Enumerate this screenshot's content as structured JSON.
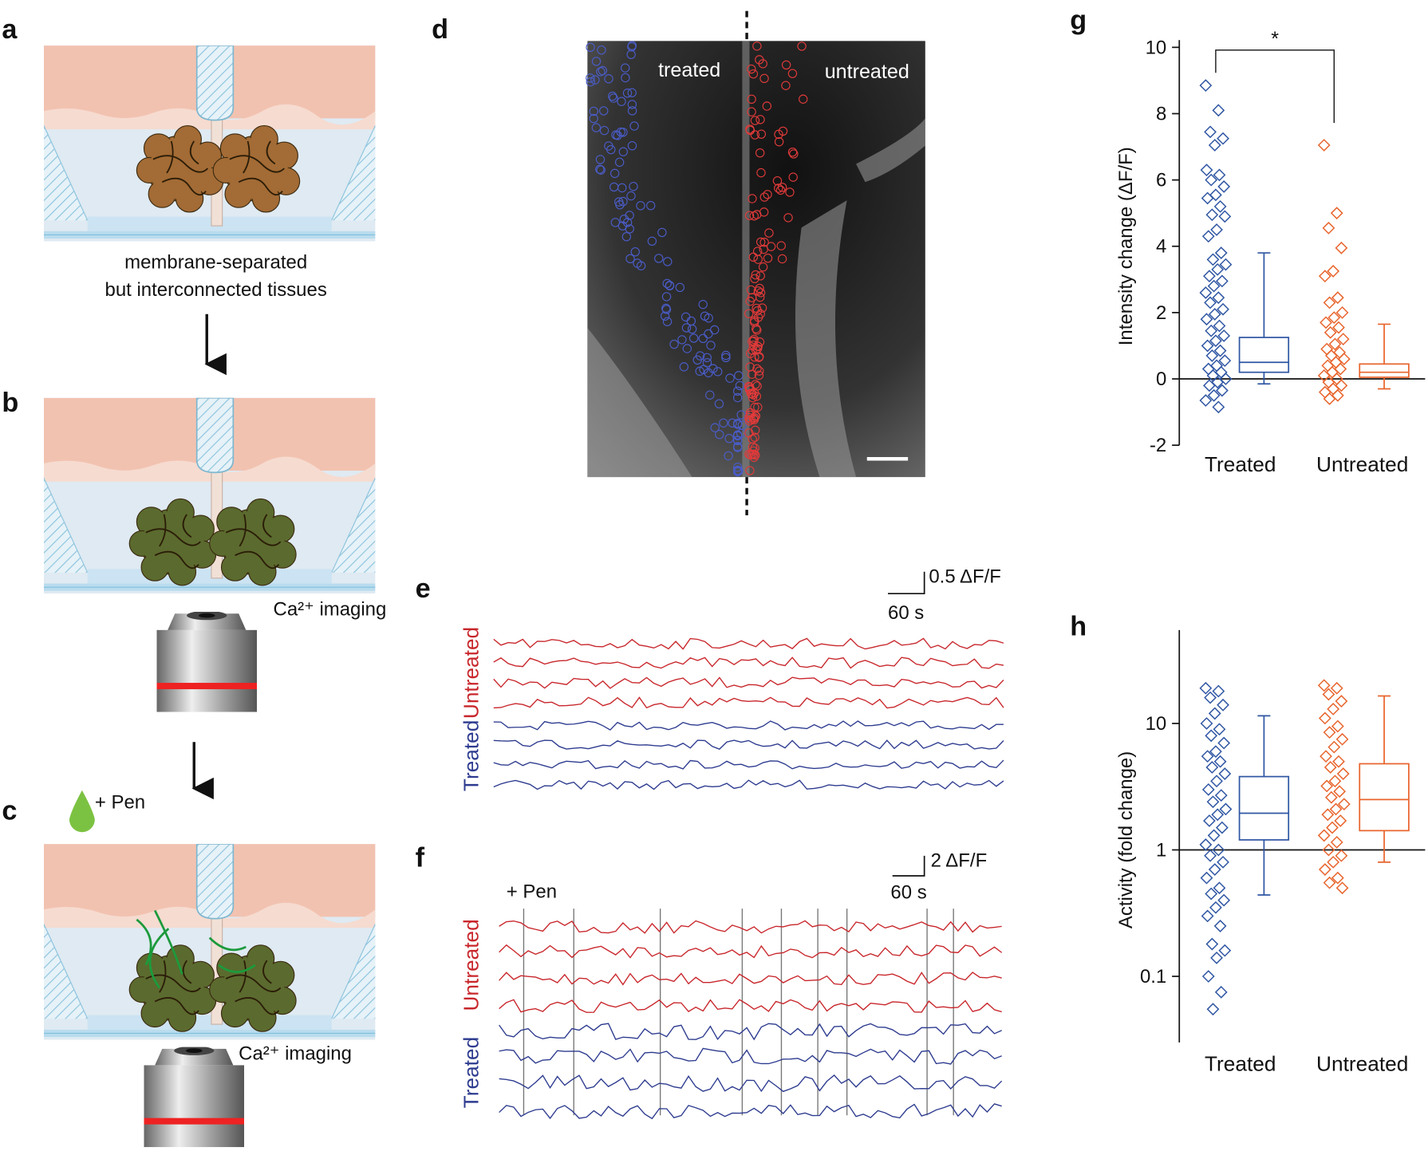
{
  "panels": {
    "a": "a",
    "b": "b",
    "c": "c",
    "d": "d",
    "e": "e",
    "f": "f",
    "g": "g",
    "h": "h"
  },
  "panel_a": {
    "caption_line1": "membrane-separated",
    "caption_line2": "but interconnected tissues"
  },
  "panel_b": {
    "imaging": "Ca²⁺ imaging"
  },
  "panel_c": {
    "drug": "+ Pen",
    "imaging": "Ca²⁺ imaging"
  },
  "panel_d": {
    "left_label": "treated",
    "right_label": "untreated"
  },
  "panel_e": {
    "scale_y": "0.5 ΔF/F",
    "scale_x": "60 s",
    "label_top": "Untreated",
    "label_bottom": "Treated"
  },
  "panel_f": {
    "drug": "+ Pen",
    "scale_y": "2 ΔF/F",
    "scale_x": "60 s",
    "label_top": "Untreated",
    "label_bottom": "Treated"
  },
  "chart_data": [
    {
      "type": "box",
      "y_label": "Intensity change (ΔF/F)",
      "annotation": "*",
      "ylim": [
        -2,
        10
      ],
      "yticks": [
        -2,
        0,
        2,
        4,
        6,
        8,
        10
      ],
      "reference_line": 0,
      "categories": [
        "Treated",
        "Untreated"
      ],
      "series": [
        {
          "color": "#2f56a3",
          "points": [
            8.85,
            8.1,
            7.45,
            7.25,
            7.05,
            6.3,
            6.15,
            6.0,
            5.8,
            5.55,
            5.45,
            5.2,
            4.95,
            4.9,
            4.5,
            4.3,
            3.8,
            3.6,
            3.45,
            3.3,
            3.1,
            2.95,
            2.8,
            2.6,
            2.45,
            2.3,
            2.1,
            1.95,
            1.8,
            1.6,
            1.45,
            1.3,
            1.15,
            1.0,
            0.85,
            0.7,
            0.55,
            0.4,
            0.3,
            0.2,
            0.1,
            0,
            -0.1,
            -0.2,
            -0.35,
            -0.5,
            -0.65,
            -0.85
          ],
          "whisker_low": -0.15,
          "q1": 0.2,
          "median": 0.5,
          "q3": 1.25,
          "whisker_high": 3.8
        },
        {
          "color": "#e8642c",
          "points": [
            7.05,
            5.0,
            4.55,
            3.95,
            3.25,
            3.1,
            2.45,
            2.3,
            2.0,
            1.85,
            1.7,
            1.55,
            1.4,
            1.2,
            1.05,
            0.9,
            0.8,
            0.7,
            0.6,
            0.5,
            0.4,
            0.3,
            0.2,
            0.1,
            0.0,
            -0.1,
            -0.2,
            -0.3,
            -0.4,
            -0.5,
            -0.6
          ],
          "whisker_low": -0.3,
          "q1": 0.05,
          "median": 0.2,
          "q3": 0.45,
          "whisker_high": 1.65
        }
      ]
    },
    {
      "type": "box",
      "y_label": "Activity (fold change)",
      "yscale": "log",
      "ylim": [
        0.03,
        48
      ],
      "yticks": [
        0.1,
        1,
        10
      ],
      "reference_line": 1,
      "categories": [
        "Treated",
        "Untreated"
      ],
      "series": [
        {
          "color": "#2f56a3",
          "points": [
            19,
            18,
            16,
            14,
            12,
            10,
            9,
            8,
            7,
            6,
            5.5,
            5,
            4.5,
            4,
            3.5,
            3,
            2.7,
            2.4,
            2.1,
            1.9,
            1.7,
            1.5,
            1.3,
            1.1,
            1.0,
            0.9,
            0.8,
            0.7,
            0.6,
            0.5,
            0.45,
            0.4,
            0.35,
            0.3,
            0.25,
            0.18,
            0.16,
            0.14,
            0.1,
            0.075,
            0.055
          ],
          "whisker_low": 0.44,
          "q1": 1.2,
          "median": 1.95,
          "q3": 3.8,
          "whisker_high": 11.5
        },
        {
          "color": "#e8642c",
          "points": [
            20,
            19,
            17,
            15,
            13,
            11,
            9.5,
            8.5,
            7.5,
            6.5,
            5.5,
            5,
            4.5,
            4,
            3.5,
            3.2,
            2.9,
            2.6,
            2.3,
            2.1,
            1.9,
            1.7,
            1.5,
            1.3,
            1.15,
            1.0,
            0.9,
            0.8,
            0.7,
            0.6,
            0.55,
            0.5
          ],
          "whisker_low": 0.8,
          "q1": 1.42,
          "median": 2.5,
          "q3": 4.8,
          "whisker_high": 16.5
        }
      ]
    }
  ]
}
